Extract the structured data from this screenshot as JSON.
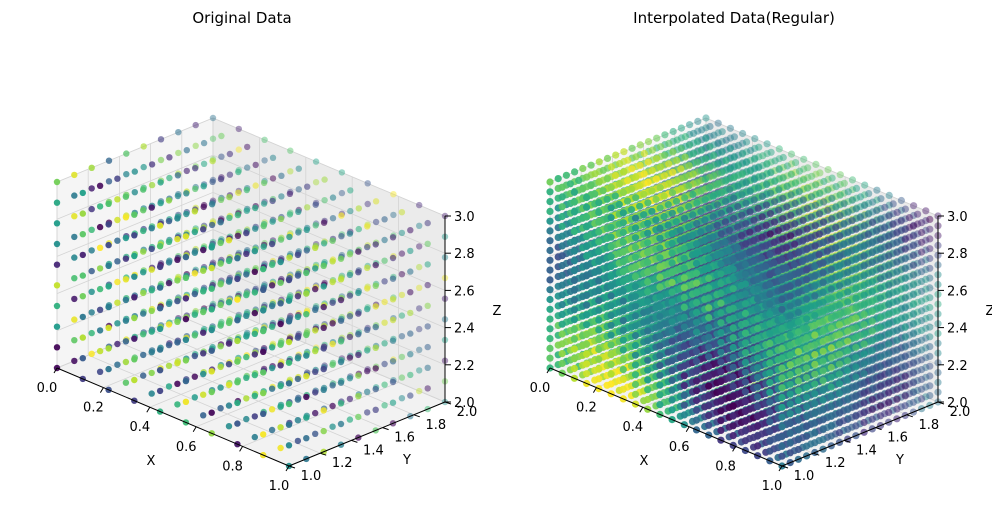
{
  "chart_data": [
    {
      "type": "scatter",
      "projection": "3d",
      "title": "Original Data",
      "xlabel": "X",
      "ylabel": "Y",
      "zlabel": "Z",
      "xlim": [
        0.0,
        1.0
      ],
      "ylim": [
        1.0,
        2.0
      ],
      "zlim": [
        2.0,
        3.0
      ],
      "x_ticks": [
        "0.0",
        "0.2",
        "0.4",
        "0.6",
        "0.8",
        "1.0"
      ],
      "y_ticks": [
        "1.0",
        "1.2",
        "1.4",
        "1.6",
        "1.8",
        "2.0"
      ],
      "z_ticks": [
        "2.0",
        "2.2",
        "2.4",
        "2.6",
        "2.8",
        "3.0"
      ],
      "grid": true,
      "colormap": "viridis",
      "marker": "circle",
      "series": [
        {
          "grid_shape": [
            10,
            10,
            10
          ],
          "x_range": [
            0.0,
            1.0
          ],
          "y_range": [
            1.0,
            2.0
          ],
          "z_range": [
            2.0,
            3.0
          ],
          "color_values": "random uniform 0-1 per point"
        }
      ]
    },
    {
      "type": "scatter",
      "projection": "3d",
      "title": "Interpolated Data(Regular)",
      "xlabel": "X",
      "ylabel": "Y",
      "zlabel": "Z",
      "xlim": [
        0.0,
        1.0
      ],
      "ylim": [
        1.0,
        2.0
      ],
      "zlim": [
        2.0,
        3.0
      ],
      "x_ticks": [
        "0.0",
        "0.2",
        "0.4",
        "0.6",
        "0.8",
        "1.0"
      ],
      "y_ticks": [
        "1.0",
        "1.2",
        "1.4",
        "1.6",
        "1.8",
        "2.0"
      ],
      "z_ticks": [
        "2.0",
        "2.2",
        "2.4",
        "2.6",
        "2.8",
        "3.0"
      ],
      "grid": true,
      "colormap": "viridis",
      "marker": "circle",
      "series": [
        {
          "grid_shape": [
            20,
            20,
            20
          ],
          "x_range": [
            0.0,
            1.0
          ],
          "y_range": [
            1.0,
            2.0
          ],
          "z_range": [
            2.0,
            3.0
          ],
          "color_values": "smoothly interpolated 0-1 field"
        }
      ]
    }
  ]
}
